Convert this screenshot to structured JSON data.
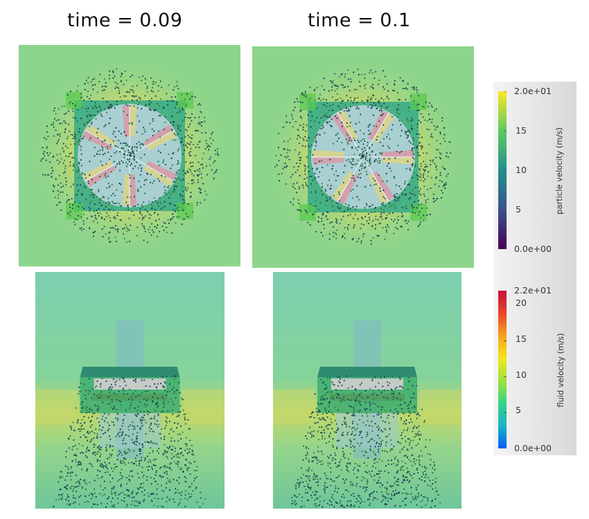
{
  "chart_data": {
    "type": "heatmap",
    "column_titles": [
      "time = 0.09",
      "time = 0.1"
    ],
    "panels": [
      {
        "time": 0.09,
        "view": "top",
        "blade_angles_deg": [
          30,
          90,
          150,
          210,
          270,
          330
        ]
      },
      {
        "time": 0.1,
        "view": "top",
        "blade_angles_deg": [
          0,
          60,
          120,
          180,
          240,
          300
        ]
      },
      {
        "time": 0.09,
        "view": "side"
      },
      {
        "time": 0.1,
        "view": "side"
      }
    ],
    "colorbars": [
      {
        "title": "particle velocity (m/s)",
        "range": [
          0.0,
          20.0
        ],
        "min_label": "0.0e+00",
        "max_label": "2.0e+01",
        "ticks": [
          5,
          10,
          15
        ],
        "tick_labels": [
          "5",
          "10",
          "15"
        ],
        "colormap": [
          "#440154",
          "#3b528b",
          "#21918c",
          "#5ec962",
          "#fde725"
        ]
      },
      {
        "title": "fluid velocity (m/s)",
        "range": [
          0.0,
          22.0
        ],
        "min_label": "0.0e+00",
        "max_label": "2.2e+01",
        "ticks": [
          5,
          10,
          15,
          20
        ],
        "tick_labels": [
          "5",
          "10",
          "15",
          "20"
        ],
        "colormap": [
          "#0a5cf5",
          "#18b4c9",
          "#36d486",
          "#9ce23c",
          "#f2e61b",
          "#f7a21c",
          "#e8422a",
          "#c8103e"
        ]
      }
    ]
  }
}
